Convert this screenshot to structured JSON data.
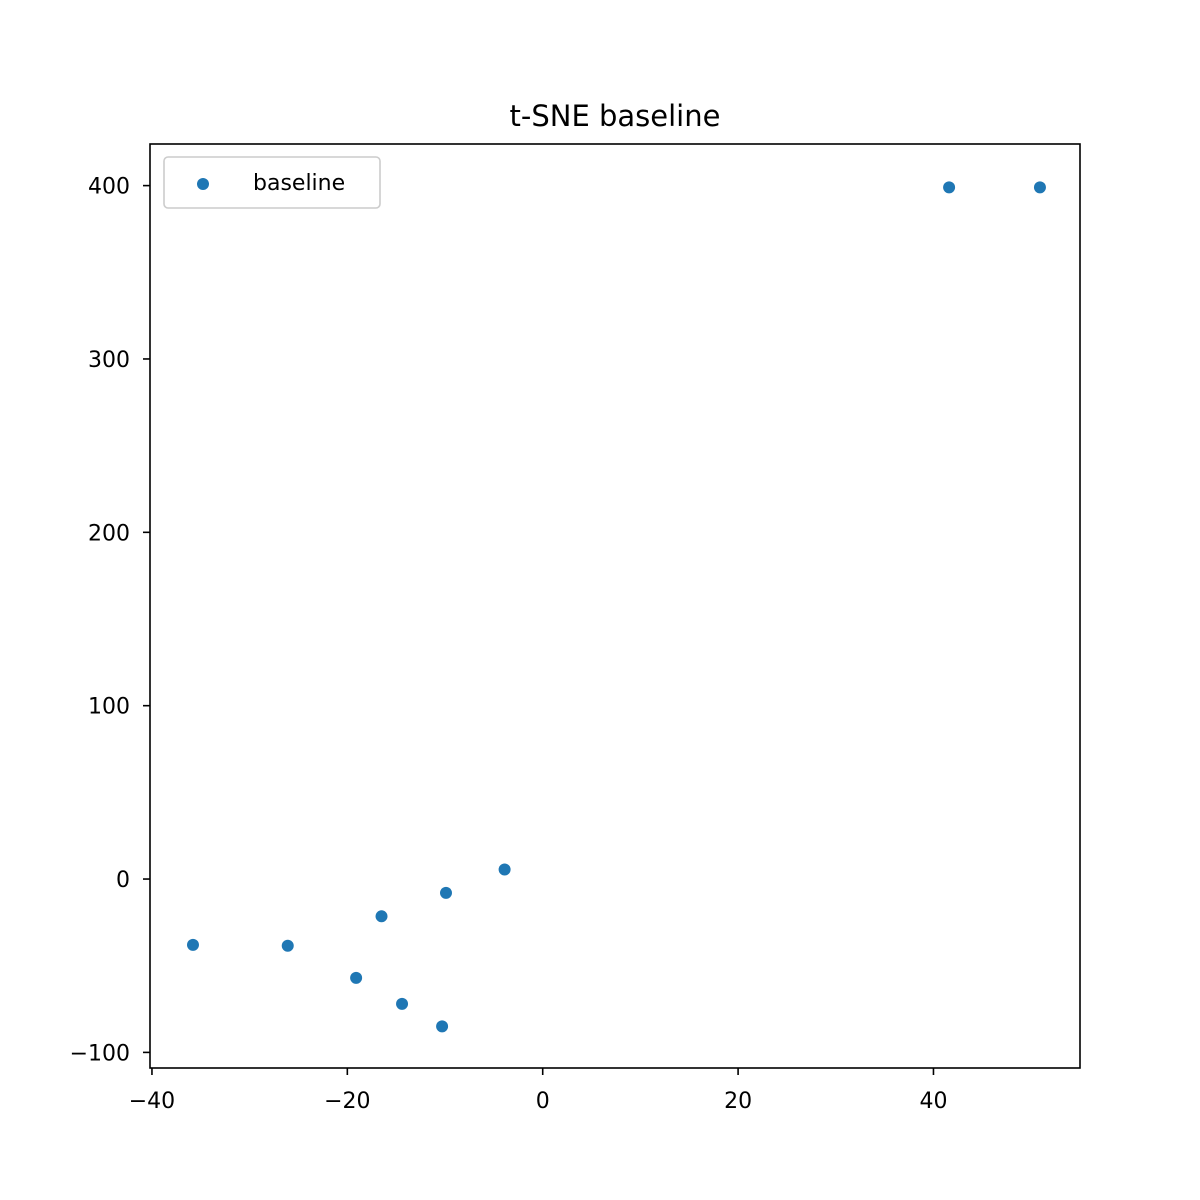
{
  "chart_data": {
    "type": "scatter",
    "title": "t-SNE baseline",
    "xlabel": "",
    "ylabel": "",
    "xlim": [
      -40.2,
      55
    ],
    "ylim": [
      -109,
      424
    ],
    "x_ticks": [
      -40,
      -20,
      0,
      20,
      40
    ],
    "x_tick_labels": [
      "−40",
      "−20",
      "0",
      "20",
      "40"
    ],
    "y_ticks": [
      -100,
      0,
      100,
      200,
      300,
      400
    ],
    "y_tick_labels": [
      "−100",
      "0",
      "100",
      "200",
      "300",
      "400"
    ],
    "grid": false,
    "legend_position": "top-left",
    "series": [
      {
        "name": "baseline",
        "color": "#1f77b4",
        "points": [
          {
            "x": -35.8,
            "y": -38
          },
          {
            "x": -26.1,
            "y": -38.5
          },
          {
            "x": -19.1,
            "y": -57
          },
          {
            "x": -16.5,
            "y": -21.5
          },
          {
            "x": -14.4,
            "y": -72
          },
          {
            "x": -10.3,
            "y": -85
          },
          {
            "x": -9.9,
            "y": -8
          },
          {
            "x": -3.9,
            "y": 5.5
          },
          {
            "x": 41.6,
            "y": 399
          },
          {
            "x": 50.9,
            "y": 399
          }
        ]
      }
    ]
  }
}
